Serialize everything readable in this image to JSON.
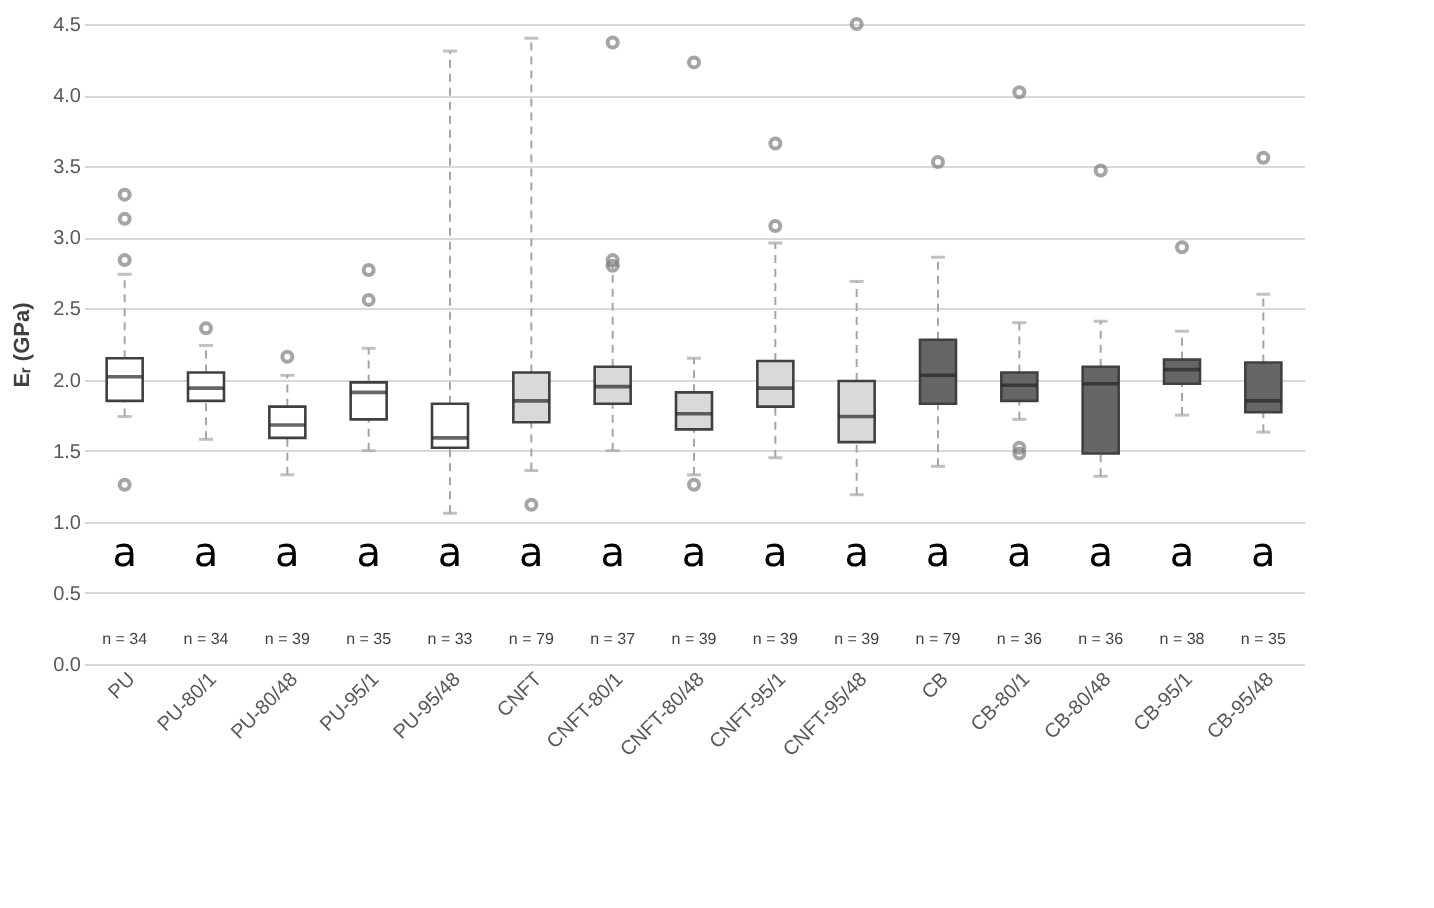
{
  "chart_data": {
    "type": "box",
    "ylabel": "Eᵣ (GPa)",
    "categories": [
      "PU",
      "PU-80/1",
      "PU-80/48",
      "PU-95/1",
      "PU-95/48",
      "CNFT",
      "CNFT-80/1",
      "CNFT-80/48",
      "CNFT-95/1",
      "CNFT-95/48",
      "CB",
      "CB-80/1",
      "CB-80/48",
      "CB-95/1",
      "CB-95/48"
    ],
    "colors": [
      "#ffffff",
      "#ffffff",
      "#ffffff",
      "#ffffff",
      "#ffffff",
      "#d9d9d9",
      "#d9d9d9",
      "#d9d9d9",
      "#d9d9d9",
      "#d9d9d9",
      "#666666",
      "#666666",
      "#666666",
      "#666666",
      "#666666"
    ],
    "boxes": [
      {
        "low": 1.74,
        "q1": 1.85,
        "median": 2.02,
        "q3": 2.15,
        "high": 2.74,
        "outliers": [
          3.3,
          3.13,
          2.84,
          1.26
        ]
      },
      {
        "low": 1.58,
        "q1": 1.85,
        "median": 1.94,
        "q3": 2.05,
        "high": 2.24,
        "outliers": [
          2.36
        ]
      },
      {
        "low": 1.33,
        "q1": 1.59,
        "median": 1.68,
        "q3": 1.81,
        "high": 2.03,
        "outliers": [
          2.16
        ]
      },
      {
        "low": 1.5,
        "q1": 1.72,
        "median": 1.91,
        "q3": 1.98,
        "high": 2.22,
        "outliers": [
          2.77,
          2.56
        ]
      },
      {
        "low": 1.06,
        "q1": 1.52,
        "median": 1.59,
        "q3": 1.83,
        "high": 4.31
      },
      {
        "low": 1.36,
        "q1": 1.7,
        "median": 1.85,
        "q3": 2.05,
        "high": 4.4,
        "outliers": [
          1.12
        ]
      },
      {
        "low": 1.5,
        "q1": 1.83,
        "median": 1.95,
        "q3": 2.09,
        "high": 2.8,
        "outliers": [
          4.37,
          2.8,
          2.84
        ]
      },
      {
        "low": 1.33,
        "q1": 1.65,
        "median": 1.76,
        "q3": 1.91,
        "high": 2.15,
        "outliers": [
          4.23,
          1.26
        ]
      },
      {
        "low": 1.45,
        "q1": 1.81,
        "median": 1.94,
        "q3": 2.13,
        "high": 2.96,
        "outliers": [
          3.66,
          3.08
        ]
      },
      {
        "low": 1.19,
        "q1": 1.56,
        "median": 1.74,
        "q3": 1.99,
        "high": 2.69,
        "outliers": [
          4.5
        ]
      },
      {
        "low": 1.39,
        "q1": 1.83,
        "median": 2.03,
        "q3": 2.28,
        "high": 2.86,
        "outliers": [
          3.53
        ]
      },
      {
        "low": 1.72,
        "q1": 1.85,
        "median": 1.96,
        "q3": 2.05,
        "high": 2.4,
        "outliers": [
          4.02,
          1.52,
          1.48
        ]
      },
      {
        "low": 1.32,
        "q1": 1.48,
        "median": 1.97,
        "q3": 2.09,
        "high": 2.41,
        "outliers": [
          3.47
        ]
      },
      {
        "low": 1.75,
        "q1": 1.97,
        "median": 2.07,
        "q3": 2.14,
        "high": 2.34,
        "outliers": [
          2.93
        ]
      },
      {
        "low": 1.63,
        "q1": 1.77,
        "median": 1.85,
        "q3": 2.12,
        "high": 2.6,
        "outliers": [
          3.56
        ]
      }
    ],
    "ylim": [
      0,
      4.5
    ],
    "yticks": [
      {
        "value": 0,
        "label": "0.0"
      },
      {
        "value": 0.5,
        "label": "0.5"
      },
      {
        "value": 1,
        "label": "1.0"
      },
      {
        "value": 1.5,
        "label": "1.5"
      },
      {
        "value": 2,
        "label": "2.0"
      },
      {
        "value": 2.5,
        "label": "2.5"
      },
      {
        "value": 3,
        "label": "3.0"
      },
      {
        "value": 3.5,
        "label": "3.5"
      },
      {
        "value": 4,
        "label": "4.0"
      },
      {
        "value": 4.5,
        "label": "4.5"
      }
    ],
    "grid": "y",
    "annotations": [
      "a",
      "a",
      "a",
      "a",
      "a",
      "a",
      "a",
      "a",
      "a",
      "a",
      "a",
      "a",
      "a",
      "a",
      "a",
      "n = 34",
      "n = 34",
      "n = 39",
      "n = 35",
      "n = 33",
      "n = 79",
      "n = 37",
      "n = 39",
      "n = 39",
      "n = 39",
      "n = 79",
      "n = 36",
      "n = 36",
      "n = 38",
      "n = 35"
    ]
  }
}
